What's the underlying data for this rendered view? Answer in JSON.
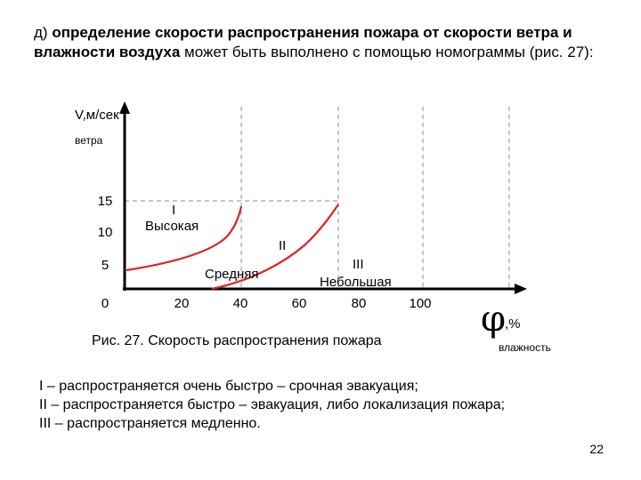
{
  "intro": {
    "prefix": "д) ",
    "bold": "определение скорости распространения пожара от скорости ветра и влажности воздуха",
    "rest": " может быть выполнено с помощью номограммы (рис. 27):"
  },
  "figure": {
    "y_axis_label": "V,м/сек",
    "y_axis_sublabel": "ветра",
    "x_axis_symbol": "φ",
    "x_axis_unit": ",%",
    "y_ticks": [
      "0",
      "5",
      "10",
      "15"
    ],
    "x_ticks": [
      "20",
      "40",
      "60",
      "80",
      "100"
    ],
    "zones": [
      {
        "numeral": "I",
        "name": "Высокая"
      },
      {
        "numeral": "II",
        "name": "Средняя"
      },
      {
        "numeral": "III",
        "name": "Небольшая"
      }
    ],
    "curve_color": "#e02020",
    "grid_color": "#a0a0a0"
  },
  "caption": "Рис. 27. Скорость распространения пожара",
  "humidity_word": "влажность",
  "legend": [
    "I – распространяется очень быстро – срочная эвакуация;",
    "II – распространяется быстро – эвакуация, либо локализация пожара;",
    "III – распространяется медленно."
  ],
  "page_number": "22"
}
